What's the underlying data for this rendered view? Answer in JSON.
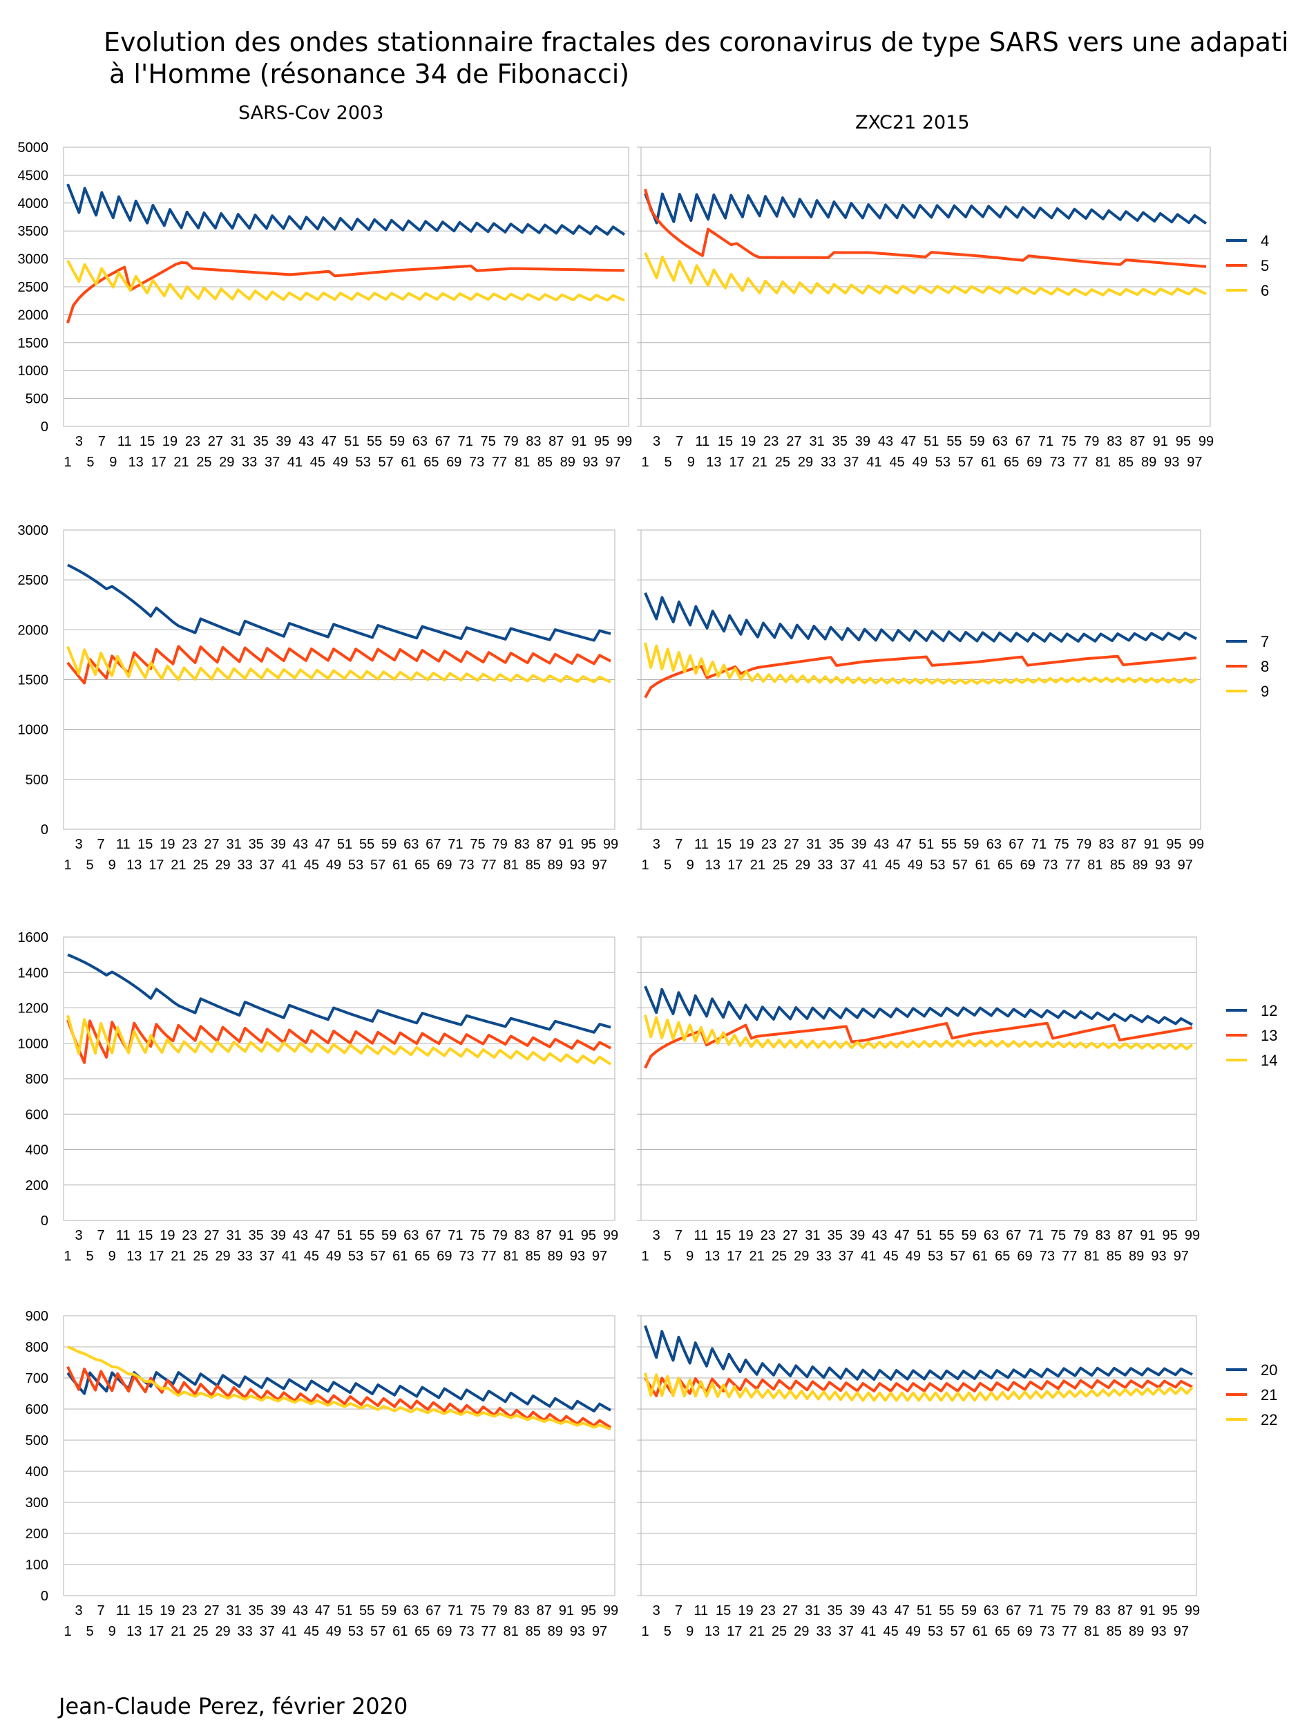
{
  "title": {
    "line1": "Evolution des ondes stationnaire fractales des coronavirus de type SARS vers une adapation",
    "line2": "à l'Homme (résonance 34 de Fibonacci)"
  },
  "columns": {
    "left": "SARS-Cov 2003",
    "right": "ZXC21 2015"
  },
  "footer": "Jean-Claude Perez, février 2020",
  "colors": {
    "blue": "#0e4a8c",
    "red": "#ff4713",
    "yellow": "#ffd320",
    "grid": "#b3b3b3"
  },
  "chart_data": [
    {
      "type": "line",
      "panel": "row1-left",
      "ylim": [
        0,
        5000
      ],
      "ystep": 500,
      "x_range": [
        1,
        99
      ],
      "series": [
        {
          "name": "4",
          "color": "#0e4a8c",
          "base": [
            4100,
            3700,
            3650,
            3600,
            3550,
            3500
          ],
          "osc": [
            400,
            240,
            180,
            140,
            120,
            110
          ],
          "period": 3,
          "trend": "saw"
        },
        {
          "name": "5",
          "color": "#ff4713",
          "base": [
            1850,
            2900,
            2700,
            2800,
            2850,
            2750
          ],
          "osc": [
            0,
            0,
            0,
            0,
            0,
            0
          ],
          "period": 1,
          "trend": "steps",
          "steps": [
            23,
            48,
            73
          ]
        },
        {
          "name": "6",
          "color": "#ffd320",
          "base": [
            2800,
            2400,
            2330,
            2330,
            2320,
            2300
          ],
          "osc": [
            280,
            180,
            100,
            90,
            80,
            70
          ],
          "period": 3,
          "trend": "saw"
        }
      ]
    },
    {
      "type": "line",
      "panel": "row1-right",
      "ylim": [
        0,
        5000
      ],
      "ystep": 500,
      "x_range": [
        1,
        99
      ],
      "series": [
        {
          "name": "4",
          "color": "#0e4a8c",
          "base": [
            3900,
            3950,
            3850,
            3850,
            3800,
            3700
          ],
          "osc": [
            450,
            300,
            200,
            160,
            130,
            110
          ],
          "period": 3,
          "trend": "saw"
        },
        {
          "name": "5",
          "color": "#ff4713",
          "base": [
            4250,
            3000,
            3100,
            3050,
            2950,
            2900
          ],
          "osc": [
            0,
            0,
            0,
            0,
            0,
            0
          ],
          "period": 1,
          "trend": "steps",
          "steps": [
            17,
            34,
            51,
            68,
            85
          ]
        },
        {
          "name": "6",
          "color": "#ffd320",
          "base": [
            2900,
            2500,
            2450,
            2450,
            2400,
            2420
          ],
          "osc": [
            350,
            180,
            110,
            90,
            80,
            80
          ],
          "period": 3,
          "trend": "saw"
        }
      ]
    },
    {
      "type": "line",
      "panel": "row2-left",
      "ylim": [
        0,
        3000
      ],
      "ystep": 500,
      "x_range": [
        1,
        99
      ],
      "series": [
        {
          "name": "7",
          "color": "#0e4a8c",
          "base": [
            2650,
            2050,
            2000,
            1980,
            1960,
            1940
          ],
          "osc": [
            0,
            120,
            110,
            100,
            90,
            80
          ],
          "period": 8,
          "trend": "saw"
        },
        {
          "name": "8",
          "color": "#ff4713",
          "base": [
            1550,
            1750,
            1750,
            1750,
            1720,
            1700
          ],
          "osc": [
            200,
            140,
            100,
            90,
            80,
            70
          ],
          "period": 4,
          "trend": "saw"
        },
        {
          "name": "9",
          "color": "#ffd320",
          "base": [
            1700,
            1560,
            1560,
            1540,
            1520,
            1500
          ],
          "osc": [
            220,
            100,
            70,
            60,
            50,
            40
          ],
          "period": 3,
          "trend": "saw"
        }
      ]
    },
    {
      "type": "line",
      "panel": "row2-right",
      "ylim": [
        0,
        3000
      ],
      "ystep": 500,
      "x_range": [
        1,
        99
      ],
      "series": [
        {
          "name": "7",
          "color": "#0e4a8c",
          "base": [
            2250,
            2000,
            1950,
            1930,
            1920,
            1940
          ],
          "osc": [
            200,
            120,
            90,
            70,
            60,
            50
          ],
          "period": 3,
          "trend": "saw"
        },
        {
          "name": "8",
          "color": "#ff4713",
          "base": [
            1320,
            1650,
            1700,
            1680,
            1700,
            1680
          ],
          "osc": [
            0,
            0,
            0,
            0,
            0,
            0
          ],
          "period": 1,
          "trend": "steps",
          "steps": [
            18,
            35,
            52,
            69,
            86
          ]
        },
        {
          "name": "9",
          "color": "#ffd320",
          "base": [
            1750,
            1520,
            1490,
            1480,
            1500,
            1490
          ],
          "osc": [
            200,
            60,
            40,
            30,
            30,
            30
          ],
          "period": 2,
          "trend": "saw"
        }
      ]
    },
    {
      "type": "line",
      "panel": "row3-left",
      "ylim": [
        0,
        1600
      ],
      "ystep": 200,
      "x_range": [
        1,
        99
      ],
      "series": [
        {
          "name": "12",
          "color": "#0e4a8c",
          "base": [
            1500,
            1220,
            1180,
            1150,
            1120,
            1080
          ],
          "osc": [
            0,
            70,
            60,
            50,
            40,
            40
          ],
          "period": 8,
          "trend": "saw"
        },
        {
          "name": "13",
          "color": "#ff4713",
          "base": [
            1000,
            1060,
            1040,
            1030,
            1020,
            980
          ],
          "osc": [
            220,
            70,
            60,
            50,
            40,
            35
          ],
          "period": 4,
          "trend": "saw"
        },
        {
          "name": "14",
          "color": "#ffd320",
          "base": [
            1050,
            980,
            980,
            960,
            940,
            900
          ],
          "osc": [
            180,
            50,
            40,
            35,
            35,
            30
          ],
          "period": 3,
          "trend": "saw"
        }
      ]
    },
    {
      "type": "line",
      "panel": "row3-right",
      "ylim": [
        0,
        1600
      ],
      "ystep": 200,
      "x_range": [
        1,
        99
      ],
      "series": [
        {
          "name": "12",
          "color": "#0e4a8c",
          "base": [
            1250,
            1170,
            1170,
            1180,
            1160,
            1120
          ],
          "osc": [
            120,
            60,
            40,
            35,
            30,
            25
          ],
          "period": 3,
          "trend": "saw"
        },
        {
          "name": "13",
          "color": "#ff4713",
          "base": [
            860,
            1080,
            1050,
            1080,
            1070,
            1050
          ],
          "osc": [
            0,
            0,
            0,
            0,
            0,
            0
          ],
          "period": 1,
          "trend": "steps",
          "steps": [
            20,
            38,
            56,
            74,
            86
          ]
        },
        {
          "name": "14",
          "color": "#ffd320",
          "base": [
            1100,
            1000,
            990,
            1000,
            990,
            980
          ],
          "osc": [
            100,
            35,
            25,
            25,
            20,
            20
          ],
          "period": 2,
          "trend": "saw"
        }
      ]
    },
    {
      "type": "line",
      "panel": "row4-left",
      "ylim": [
        0,
        900
      ],
      "ystep": 100,
      "x_range": [
        1,
        99
      ],
      "series": [
        {
          "name": "20",
          "color": "#0e4a8c",
          "base": [
            680,
            700,
            680,
            660,
            640,
            600
          ],
          "osc": [
            60,
            30,
            25,
            25,
            25,
            20
          ],
          "period": 4,
          "trend": "saw"
        },
        {
          "name": "21",
          "color": "#ff4713",
          "base": [
            700,
            670,
            640,
            620,
            590,
            550
          ],
          "osc": [
            60,
            30,
            20,
            20,
            20,
            15
          ],
          "period": 3,
          "trend": "saw"
        },
        {
          "name": "22",
          "color": "#ffd320",
          "base": [
            800,
            650,
            630,
            600,
            580,
            540
          ],
          "osc": [
            0,
            10,
            10,
            10,
            8,
            8
          ],
          "period": 3,
          "trend": "saw"
        }
      ]
    },
    {
      "type": "line",
      "panel": "row4-right",
      "ylim": [
        0,
        900
      ],
      "ystep": 100,
      "x_range": [
        1,
        99
      ],
      "series": [
        {
          "name": "20",
          "color": "#0e4a8c",
          "base": [
            820,
            730,
            710,
            710,
            720,
            720
          ],
          "osc": [
            80,
            30,
            25,
            20,
            20,
            15
          ],
          "period": 3,
          "trend": "saw"
        },
        {
          "name": "21",
          "color": "#ff4713",
          "base": [
            670,
            680,
            670,
            670,
            680,
            680
          ],
          "osc": [
            50,
            25,
            20,
            20,
            20,
            15
          ],
          "period": 3,
          "trend": "saw"
        },
        {
          "name": "22",
          "color": "#ffd320",
          "base": [
            680,
            650,
            640,
            640,
            650,
            660
          ],
          "osc": [
            60,
            20,
            20,
            20,
            15,
            15
          ],
          "period": 2,
          "trend": "saw"
        }
      ]
    }
  ]
}
